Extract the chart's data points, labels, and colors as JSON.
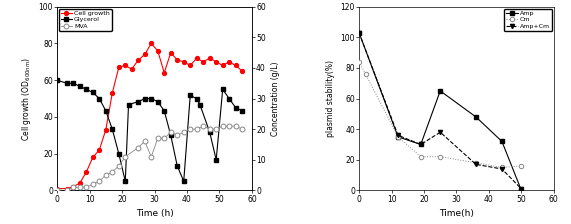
{
  "left": {
    "cell_growth_time": [
      0,
      3,
      5,
      7,
      9,
      11,
      13,
      15,
      17,
      19,
      21,
      23,
      25,
      27,
      29,
      31,
      33,
      35,
      37,
      39,
      41,
      43,
      45,
      47,
      49,
      51,
      53,
      55,
      57
    ],
    "cell_growth_vals": [
      1,
      1,
      2,
      4,
      10,
      18,
      22,
      33,
      53,
      67,
      68,
      66,
      71,
      74,
      80,
      76,
      64,
      75,
      71,
      70,
      68,
      72,
      70,
      72,
      70,
      68,
      70,
      68,
      65
    ],
    "glycerol_time": [
      0,
      3,
      5,
      7,
      9,
      11,
      13,
      15,
      17,
      19,
      21,
      22,
      25,
      27,
      29,
      31,
      33,
      35,
      37,
      39,
      41,
      43,
      44,
      47,
      49,
      51,
      53,
      55,
      57
    ],
    "glycerol_vals": [
      36,
      35,
      35,
      34,
      33,
      32,
      30,
      26,
      20,
      12,
      3,
      28,
      29,
      30,
      30,
      29,
      26,
      18,
      8,
      3,
      31,
      30,
      28,
      19,
      10,
      33,
      30,
      27,
      26
    ],
    "mva_time": [
      0,
      3,
      5,
      7,
      9,
      11,
      13,
      15,
      17,
      19,
      21,
      25,
      27,
      29,
      31,
      33,
      35,
      37,
      39,
      41,
      43,
      45,
      47,
      49,
      51,
      53,
      55,
      57
    ],
    "mva_vals": [
      0,
      0,
      1,
      1,
      1,
      2,
      3,
      5,
      6,
      8,
      11,
      14,
      16,
      11,
      17,
      17,
      19,
      18,
      19,
      20,
      20,
      21,
      20,
      20,
      21,
      21,
      21,
      20
    ],
    "ylabel_left": "Cell growth (OD$_{600nm}$)",
    "ylabel_right": "Concentration (g/L)",
    "xlabel": "Time (h)",
    "xlim": [
      0,
      60
    ],
    "ylim_left": [
      0,
      100
    ],
    "ylim_right": [
      0,
      60
    ],
    "yticks_left": [
      0,
      20,
      40,
      60,
      80,
      100
    ],
    "yticks_right": [
      0,
      10,
      20,
      30,
      40,
      50,
      60
    ],
    "xticks": [
      0,
      10,
      20,
      30,
      40,
      50,
      60
    ],
    "legend_labels": [
      "Cell growth",
      "Glycerol",
      "MVA"
    ]
  },
  "right": {
    "amp_time": [
      0,
      12,
      19,
      25,
      36,
      44,
      50
    ],
    "amp_vals": [
      103,
      35,
      30,
      65,
      48,
      32,
      0
    ],
    "cm_time": [
      0,
      2,
      12,
      19,
      25,
      36,
      44,
      50
    ],
    "cm_vals": [
      84,
      76,
      35,
      22,
      22,
      18,
      15,
      16
    ],
    "ampCm_time": [
      0,
      12,
      19,
      25,
      36,
      44,
      50
    ],
    "ampCm_vals": [
      103,
      36,
      30,
      38,
      17,
      14,
      1
    ],
    "ylabel": "plasmid stability(%)",
    "xlabel": "Time(h)",
    "xlim": [
      0,
      60
    ],
    "ylim": [
      0,
      120
    ],
    "yticks": [
      0,
      20,
      40,
      60,
      80,
      100,
      120
    ],
    "xticks": [
      0,
      10,
      20,
      30,
      40,
      50,
      60
    ],
    "legend_labels": [
      "Amp",
      "Cm",
      "Amp+Cm"
    ]
  },
  "bg_color": "#ffffff",
  "line_color": "#333333",
  "gray_color": "#888888"
}
